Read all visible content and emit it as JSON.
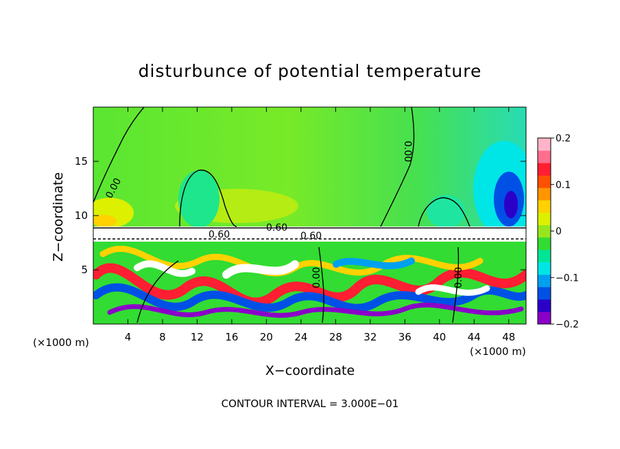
{
  "chart_data": {
    "type": "heatmap",
    "title": "disturbunce of potential temperature",
    "xlabel": "X−coordinate",
    "ylabel": "Z−coordinate",
    "x_unit_left": "(×1000 m)",
    "x_unit_right": "(×1000 m)",
    "xlim": [
      0,
      50
    ],
    "ylim": [
      0,
      20
    ],
    "xticks": [
      4,
      8,
      12,
      16,
      20,
      24,
      28,
      32,
      36,
      40,
      44,
      48
    ],
    "yticks": [
      5,
      10,
      15
    ],
    "colorbar": {
      "min": -0.2,
      "max": 0.2,
      "tick_values": [
        0.2,
        0.1,
        0,
        -0.1,
        -0.2
      ],
      "tick_labels": [
        "0.2",
        "0.1",
        "0",
        "−0.1",
        "−0.2"
      ],
      "colors": [
        "#8b00c8",
        "#2a00c8",
        "#0050e6",
        "#00a0f0",
        "#00e6e6",
        "#00e696",
        "#32dc32",
        "#96e61e",
        "#dcf000",
        "#ffd200",
        "#ff9600",
        "#ff5000",
        "#ff1e32",
        "#ff6e8c",
        "#ffb4c8"
      ]
    },
    "contour_labels": [
      "0.00",
      "0.00",
      "0.00",
      "0.00",
      "0.60",
      "0.60",
      "0.60"
    ],
    "footer": "CONTOUR INTERVAL = 3.000E−01",
    "grid": false,
    "legend": "colorbar right"
  }
}
